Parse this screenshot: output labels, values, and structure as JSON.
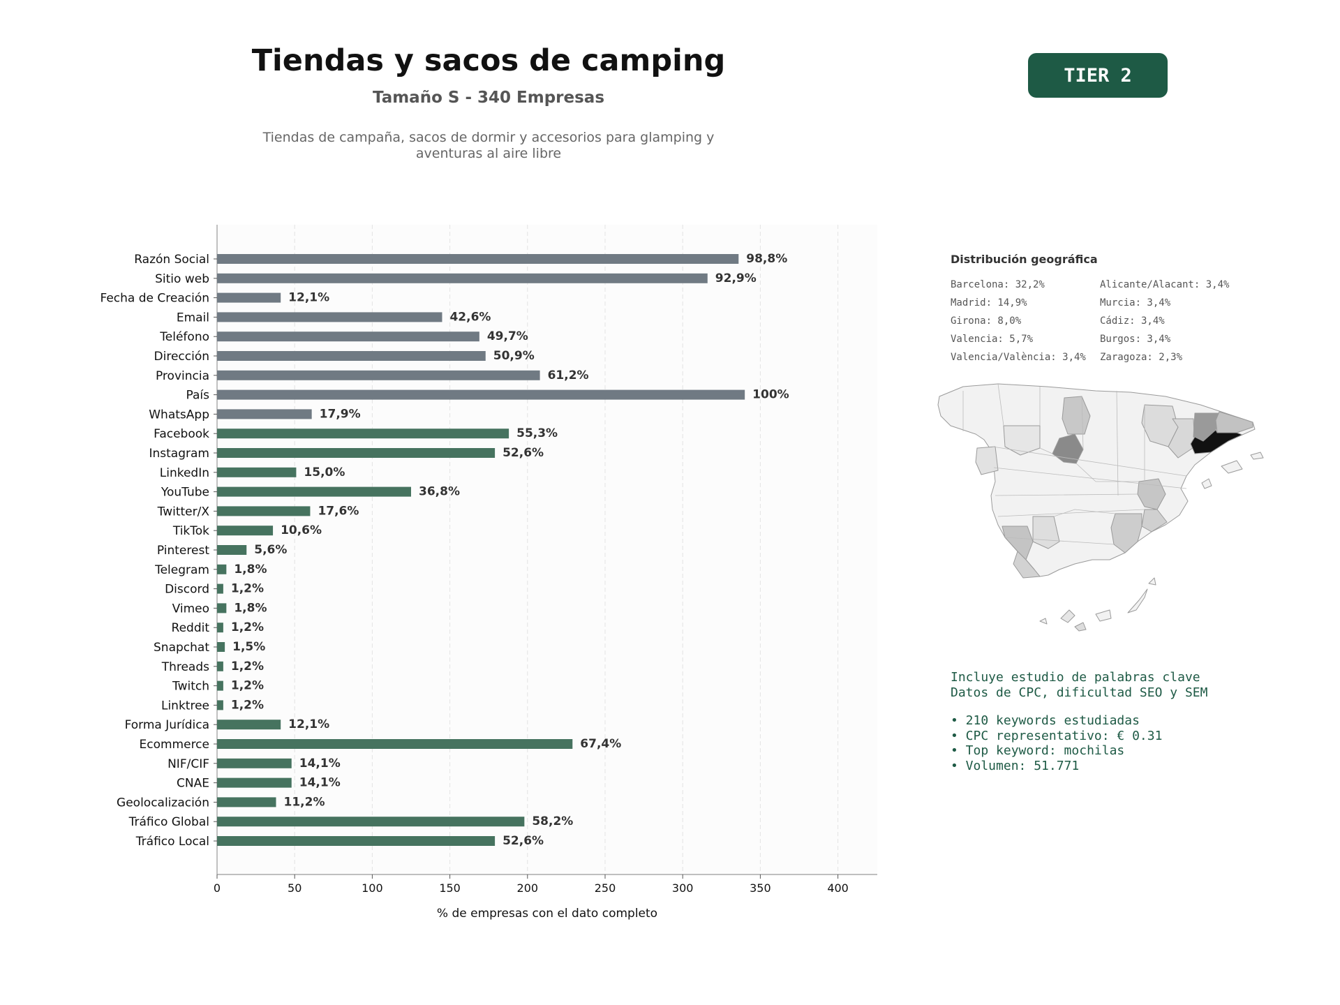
{
  "header": {
    "title": "Tiendas y sacos de camping",
    "subtitle": "Tamaño S - 340 Empresas",
    "description_line1": "Tiendas de campaña, sacos de dormir y accesorios para glamping y",
    "description_line2": "aventuras al aire libre",
    "tier": "TIER 2"
  },
  "colors": {
    "basic_bar": "#707a83",
    "social_bar": "#46735f",
    "badge": "#1e5a45",
    "keywords_text": "#1e5a45"
  },
  "chart_data": {
    "type": "bar",
    "orientation": "horizontal",
    "xlabel": "% de empresas con el dato completo",
    "xlim": [
      0,
      425
    ],
    "xticks": [
      0,
      50,
      100,
      150,
      200,
      250,
      300,
      350,
      400
    ],
    "grid": "vertical dashed",
    "categories": [
      "Razón Social",
      "Sitio web",
      "Fecha de Creación",
      "Email",
      "Teléfono",
      "Dirección",
      "Provincia",
      "País",
      "WhatsApp",
      "Facebook",
      "Instagram",
      "LinkedIn",
      "YouTube",
      "Twitter/X",
      "TikTok",
      "Pinterest",
      "Telegram",
      "Discord",
      "Vimeo",
      "Reddit",
      "Snapchat",
      "Threads",
      "Twitch",
      "Linktree",
      "Forma Jurídica",
      "Ecommerce",
      "NIF/CIF",
      "CNAE",
      "Geolocalización",
      "Tráfico Global",
      "Tráfico Local"
    ],
    "values": [
      336,
      316,
      41,
      145,
      169,
      173,
      208,
      340,
      61,
      188,
      179,
      51,
      125,
      60,
      36,
      19,
      6,
      4,
      6,
      4,
      5,
      4,
      4,
      4,
      41,
      229,
      48,
      48,
      38,
      198,
      179
    ],
    "labels": [
      "98,8%",
      "92,9%",
      "12,1%",
      "42,6%",
      "49,7%",
      "50,9%",
      "61,2%",
      "100%",
      "17,9%",
      "55,3%",
      "52,6%",
      "15,0%",
      "36,8%",
      "17,6%",
      "10,6%",
      "5,6%",
      "1,8%",
      "1,2%",
      "1,8%",
      "1,2%",
      "1,5%",
      "1,2%",
      "1,2%",
      "1,2%",
      "12,1%",
      "67,4%",
      "14,1%",
      "14,1%",
      "11,2%",
      "58,2%",
      "52,6%"
    ],
    "color_groups": [
      "basic",
      "basic",
      "basic",
      "basic",
      "basic",
      "basic",
      "basic",
      "basic",
      "basic",
      "social",
      "social",
      "social",
      "social",
      "social",
      "social",
      "social",
      "social",
      "social",
      "social",
      "social",
      "social",
      "social",
      "social",
      "social",
      "social",
      "social",
      "social",
      "social",
      "social",
      "social",
      "social"
    ]
  },
  "geo": {
    "title": "Distribución geográfica",
    "left": [
      "Barcelona: 32,2%",
      "Madrid: 14,9%",
      "Girona: 8,0%",
      "Valencia: 5,7%",
      "Valencia/València: 3,4%"
    ],
    "right": [
      "Alicante/Alacant: 3,4%",
      "Murcia: 3,4%",
      "Cádiz: 3,4%",
      "Burgos: 3,4%",
      "Zaragoza: 2,3%"
    ]
  },
  "keywords": {
    "line1": "Incluye estudio de palabras clave",
    "line2": "Datos de CPC, dificultad SEO y SEM",
    "bullet1": "• 210 keywords estudiadas",
    "bullet2": "• CPC representativo: € 0.31",
    "bullet3": "• Top keyword: mochilas",
    "bullet4": "• Volumen: 51.771"
  }
}
